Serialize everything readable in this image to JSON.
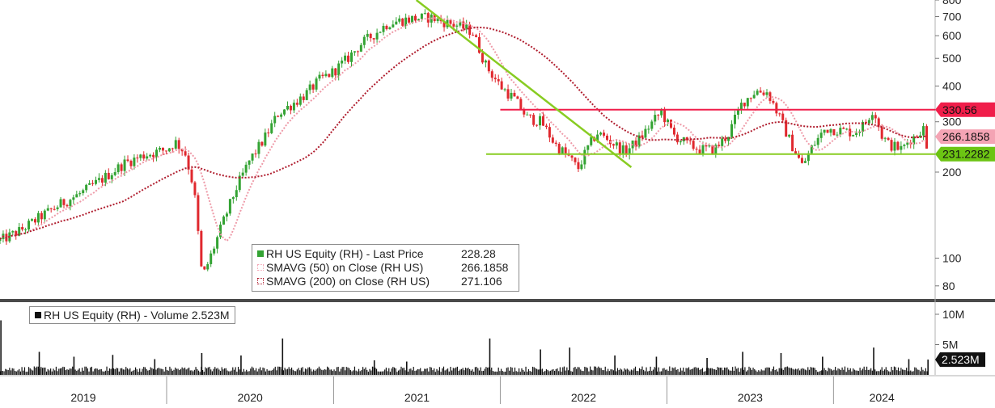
{
  "chart_data": [
    {
      "type": "candlestick",
      "scale": "log",
      "ylim": [
        72,
        800
      ],
      "y_ticks": [
        80,
        100,
        200,
        300,
        400,
        500,
        600,
        700,
        800
      ],
      "y_tick_labels": [
        "80",
        "100",
        "200",
        "300",
        "400",
        "500",
        "600",
        "700",
        "800"
      ],
      "x_range": [
        "2019-01-01",
        "2024-07-31"
      ],
      "x_labels": [
        "2019",
        "2020",
        "2021",
        "2022",
        "2023",
        "2024"
      ],
      "grid": false,
      "colors": {
        "up": "#33a333",
        "down": "#e0282e",
        "sma50": "#ee9aa8",
        "sma200": "#b01e2f",
        "resistance": "#f01e4a",
        "support": "#88cc22",
        "trendline": "#88cc22"
      },
      "price_path": [
        [
          "2019-01-01",
          115
        ],
        [
          "2019-02-15",
          125
        ],
        [
          "2019-04-01",
          140
        ],
        [
          "2019-05-15",
          155
        ],
        [
          "2019-07-01",
          170
        ],
        [
          "2019-08-15",
          190
        ],
        [
          "2019-10-01",
          215
        ],
        [
          "2019-11-15",
          230
        ],
        [
          "2020-01-01",
          240
        ],
        [
          "2020-01-20",
          255
        ],
        [
          "2020-02-10",
          235
        ],
        [
          "2020-03-01",
          175
        ],
        [
          "2020-03-19",
          85
        ],
        [
          "2020-04-05",
          100
        ],
        [
          "2020-05-01",
          130
        ],
        [
          "2020-06-01",
          175
        ],
        [
          "2020-07-01",
          220
        ],
        [
          "2020-08-01",
          260
        ],
        [
          "2020-09-01",
          320
        ],
        [
          "2020-10-01",
          345
        ],
        [
          "2020-11-01",
          375
        ],
        [
          "2020-12-01",
          420
        ],
        [
          "2021-01-01",
          450
        ],
        [
          "2021-02-01",
          500
        ],
        [
          "2021-03-01",
          560
        ],
        [
          "2021-04-01",
          610
        ],
        [
          "2021-05-01",
          665
        ],
        [
          "2021-06-01",
          680
        ],
        [
          "2021-07-01",
          690
        ],
        [
          "2021-08-01",
          695
        ],
        [
          "2021-09-01",
          670
        ],
        [
          "2021-10-01",
          650
        ],
        [
          "2021-11-01",
          620
        ],
        [
          "2021-12-01",
          470
        ],
        [
          "2022-01-01",
          400
        ],
        [
          "2022-02-01",
          360
        ],
        [
          "2022-03-01",
          310
        ],
        [
          "2022-04-01",
          300
        ],
        [
          "2022-05-01",
          250
        ],
        [
          "2022-06-01",
          225
        ],
        [
          "2022-06-20",
          205
        ],
        [
          "2022-07-10",
          240
        ],
        [
          "2022-08-01",
          275
        ],
        [
          "2022-09-01",
          255
        ],
        [
          "2022-10-01",
          235
        ],
        [
          "2022-11-01",
          260
        ],
        [
          "2022-12-01",
          300
        ],
        [
          "2022-12-20",
          325
        ],
        [
          "2023-01-15",
          270
        ],
        [
          "2023-02-15",
          250
        ],
        [
          "2023-03-15",
          240
        ],
        [
          "2023-04-15",
          240
        ],
        [
          "2023-05-15",
          270
        ],
        [
          "2023-06-15",
          350
        ],
        [
          "2023-07-15",
          385
        ],
        [
          "2023-08-10",
          380
        ],
        [
          "2023-09-01",
          320
        ],
        [
          "2023-10-01",
          250
        ],
        [
          "2023-10-25",
          210
        ],
        [
          "2023-11-15",
          245
        ],
        [
          "2023-12-15",
          285
        ],
        [
          "2024-01-15",
          280
        ],
        [
          "2024-02-15",
          275
        ],
        [
          "2024-03-10",
          295
        ],
        [
          "2024-03-28",
          335
        ],
        [
          "2024-04-15",
          270
        ],
        [
          "2024-05-01",
          250
        ],
        [
          "2024-05-30",
          240
        ],
        [
          "2024-06-15",
          260
        ],
        [
          "2024-07-01",
          268
        ],
        [
          "2024-07-15",
          290
        ],
        [
          "2024-07-25",
          228
        ]
      ],
      "lines": [
        {
          "name": "resistance",
          "value": 330.56,
          "from": "2022-01-01",
          "to": "2024-07-31"
        },
        {
          "name": "support",
          "value": 231.2282,
          "from": "2021-12-01",
          "to": "2024-07-31"
        },
        {
          "name": "trendline",
          "from": [
            "2021-07-01",
            800
          ],
          "to": [
            "2022-10-15",
            208
          ]
        }
      ],
      "price_tags": [
        {
          "value": 330.56,
          "label": "330.56",
          "color": "#f01e4a"
        },
        {
          "value": 266.1858,
          "label": "266.1858",
          "color": "#f4a4b4"
        },
        {
          "value": 231.2282,
          "label": "231.2282",
          "color": "#6cc413"
        }
      ],
      "legend": [
        {
          "swatch": "#33a333",
          "label": "RH US Equity (RH) - Last Price",
          "value": "228.28"
        },
        {
          "swatch": "#f4a4b4",
          "label": "SMAVG (50) on Close (RH US)",
          "value": "266.1858"
        },
        {
          "swatch": "#b01e2f",
          "label": "SMAVG (200) on Close (RH US)",
          "value": "271.106"
        }
      ]
    },
    {
      "type": "bar",
      "ylim": [
        0,
        12000000
      ],
      "y_ticks": [
        5000000,
        10000000
      ],
      "y_tick_labels": [
        "5M",
        "10M"
      ],
      "last_value": 2523000,
      "last_label": "2.523M",
      "legend": {
        "label": "RH US Equity (RH) - Volume 2.523M"
      },
      "spikes": [
        [
          "2019-01-03",
          9000000
        ],
        [
          "2019-03-28",
          3800000
        ],
        [
          "2019-06-12",
          3000000
        ],
        [
          "2019-09-05",
          3300000
        ],
        [
          "2019-12-06",
          2600000
        ],
        [
          "2020-03-18",
          3600000
        ],
        [
          "2020-06-12",
          3200000
        ],
        [
          "2020-09-11",
          6000000
        ],
        [
          "2021-03-31",
          2400000
        ],
        [
          "2021-06-10",
          2200000
        ],
        [
          "2021-12-09",
          6000000
        ],
        [
          "2022-03-30",
          4200000
        ],
        [
          "2022-06-02",
          4500000
        ],
        [
          "2022-09-09",
          3200000
        ],
        [
          "2022-12-09",
          3000000
        ],
        [
          "2023-03-30",
          2800000
        ],
        [
          "2023-06-16",
          3800000
        ],
        [
          "2023-09-08",
          3600000
        ],
        [
          "2023-12-08",
          3000000
        ],
        [
          "2024-03-29",
          4500000
        ],
        [
          "2024-06-14",
          2600000
        ],
        [
          "2024-07-26",
          2523000
        ]
      ]
    }
  ]
}
